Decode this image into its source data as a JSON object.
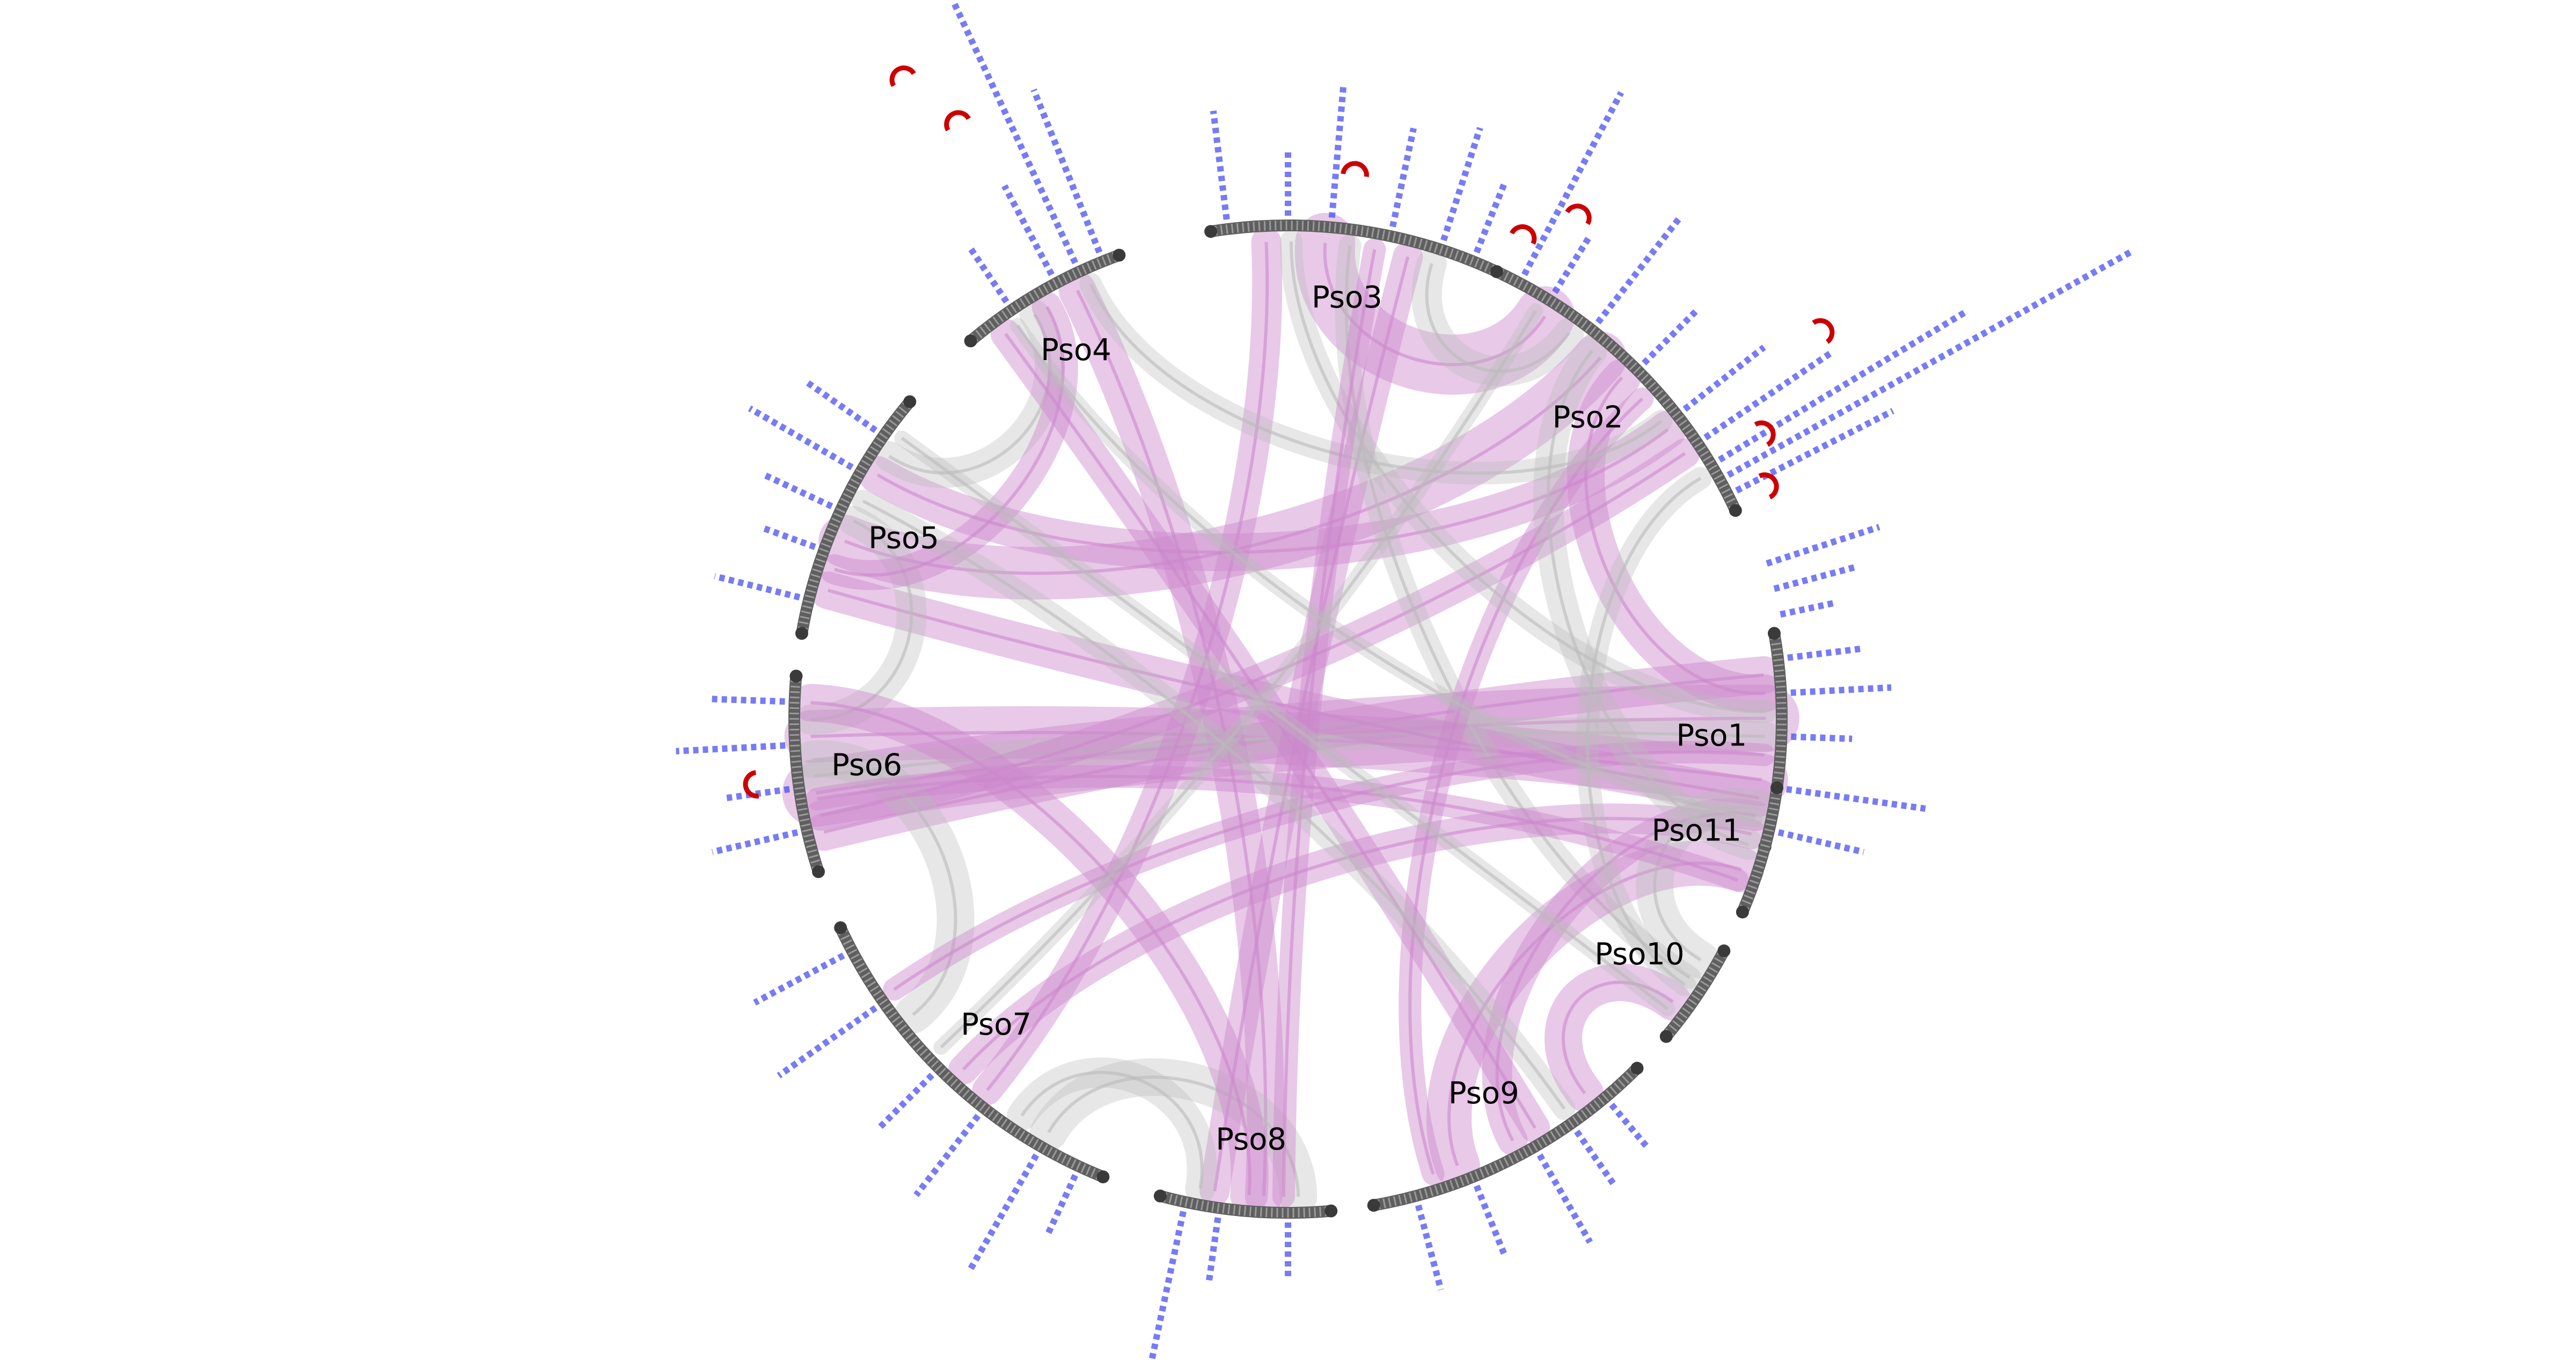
{
  "colors": {
    "background": "#ffffff",
    "chromosome_arc": "#5f5f5f",
    "chromosome_tick": "#9a9a9a",
    "highlight_link": "#cc88cc",
    "background_link": "#bbbbbb",
    "histogram_bar": "#4a4ff0",
    "marker": "#cc0000"
  },
  "chromosomes": [
    {
      "id": "Pso1",
      "label": "Pso1",
      "start_deg": 10,
      "end_deg": -15
    },
    {
      "id": "Pso2",
      "label": "Pso2",
      "start_deg": 65,
      "end_deg": 25
    },
    {
      "id": "Pso3",
      "label": "Pso3",
      "start_deg": 99,
      "end_deg": 65
    },
    {
      "id": "Pso4",
      "label": "Pso4",
      "start_deg": 130,
      "end_deg": 110
    },
    {
      "id": "Pso5",
      "label": "Pso5",
      "start_deg": 170,
      "end_deg": 140
    },
    {
      "id": "Pso6",
      "label": "Pso6",
      "start_deg": 198,
      "end_deg": 175
    },
    {
      "id": "Pso7",
      "label": "Pso7",
      "start_deg": 248,
      "end_deg": 205
    },
    {
      "id": "Pso8",
      "label": "Pso8",
      "start_deg": 275,
      "end_deg": 255
    },
    {
      "id": "Pso9",
      "label": "Pso9",
      "start_deg": 315,
      "end_deg": 280
    },
    {
      "id": "Pso10",
      "label": "Pso10",
      "start_deg": 332,
      "end_deg": 320
    },
    {
      "id": "Pso11",
      "label": "Pso11",
      "start_deg": 352,
      "end_deg": 337
    }
  ],
  "links": [
    {
      "from": "Pso6",
      "to": "Pso1",
      "w": 9,
      "hl": true
    },
    {
      "from": "Pso6",
      "to": "Pso1",
      "w": 7,
      "hl": true
    },
    {
      "from": "Pso6",
      "to": "Pso1",
      "w": 5,
      "hl": true
    },
    {
      "from": "Pso6",
      "to": "Pso1",
      "w": 4,
      "hl": false
    },
    {
      "from": "Pso5",
      "to": "Pso2",
      "w": 7,
      "hl": true
    },
    {
      "from": "Pso5",
      "to": "Pso2",
      "w": 5,
      "hl": true
    },
    {
      "from": "Pso5",
      "to": "Pso1",
      "w": 5,
      "hl": true
    },
    {
      "from": "Pso5",
      "to": "Pso6",
      "w": 4,
      "hl": false
    },
    {
      "from": "Pso5",
      "to": "Pso4",
      "w": 4,
      "hl": false
    },
    {
      "from": "Pso2",
      "to": "Pso3",
      "w": 8,
      "hl": true
    },
    {
      "from": "Pso2",
      "to": "Pso1",
      "w": 5,
      "hl": true
    },
    {
      "from": "Pso2",
      "to": "Pso6",
      "w": 4,
      "hl": true
    },
    {
      "from": "Pso4",
      "to": "Pso8",
      "w": 5,
      "hl": true
    },
    {
      "from": "Pso4",
      "to": "Pso9",
      "w": 4,
      "hl": true
    },
    {
      "from": "Pso4",
      "to": "Pso5",
      "w": 4,
      "hl": true
    },
    {
      "from": "Pso3",
      "to": "Pso8",
      "w": 4,
      "hl": true
    },
    {
      "from": "Pso3",
      "to": "Pso7",
      "w": 4,
      "hl": true
    },
    {
      "from": "Pso3",
      "to": "Pso10",
      "w": 3,
      "hl": false
    },
    {
      "from": "Pso3",
      "to": "Pso2",
      "w": 4,
      "hl": false
    },
    {
      "from": "Pso7",
      "to": "Pso6",
      "w": 5,
      "hl": false
    },
    {
      "from": "Pso7",
      "to": "Pso8",
      "w": 5,
      "hl": false
    },
    {
      "from": "Pso7",
      "to": "Pso11",
      "w": 4,
      "hl": true
    },
    {
      "from": "Pso7",
      "to": "Pso1",
      "w": 3,
      "hl": true
    },
    {
      "from": "Pso8",
      "to": "Pso6",
      "w": 5,
      "hl": true
    },
    {
      "from": "Pso8",
      "to": "Pso7",
      "w": 4,
      "hl": false
    },
    {
      "from": "Pso9",
      "to": "Pso11",
      "w": 6,
      "hl": true
    },
    {
      "from": "Pso9",
      "to": "Pso10",
      "w": 5,
      "hl": true
    },
    {
      "from": "Pso9",
      "to": "Pso1",
      "w": 4,
      "hl": true
    },
    {
      "from": "Pso9",
      "to": "Pso2",
      "w": 3,
      "hl": true
    },
    {
      "from": "Pso10",
      "to": "Pso11",
      "w": 5,
      "hl": false
    },
    {
      "from": "Pso10",
      "to": "Pso2",
      "w": 3,
      "hl": false
    },
    {
      "from": "Pso11",
      "to": "Pso2",
      "w": 4,
      "hl": false
    },
    {
      "from": "Pso11",
      "to": "Pso6",
      "w": 3,
      "hl": true
    },
    {
      "from": "Pso1",
      "to": "Pso3",
      "w": 3,
      "hl": false
    },
    {
      "from": "Pso4",
      "to": "Pso2",
      "w": 3,
      "hl": false
    },
    {
      "from": "Pso8",
      "to": "Pso3",
      "w": 3,
      "hl": true
    },
    {
      "from": "Pso9",
      "to": "Pso5",
      "w": 3,
      "hl": false
    },
    {
      "from": "Pso10",
      "to": "Pso5",
      "w": 2,
      "hl": false
    },
    {
      "from": "Pso11",
      "to": "Pso4",
      "w": 2,
      "hl": false
    },
    {
      "from": "Pso7",
      "to": "Pso2",
      "w": 2,
      "hl": false
    }
  ],
  "histogram_bars": [
    {
      "deg": 7,
      "h": 0.12
    },
    {
      "deg": 3,
      "h": 0.18
    },
    {
      "deg": -2,
      "h": 0.09
    },
    {
      "deg": -8,
      "h": 0.27
    },
    {
      "deg": -13,
      "h": 0.15
    },
    {
      "deg": 12,
      "h": 0.08
    },
    {
      "deg": 15,
      "h": 0.14
    },
    {
      "deg": 18,
      "h": 0.22
    },
    {
      "deg": 27,
      "h": 0.35
    },
    {
      "deg": 29,
      "h": 1.0
    },
    {
      "deg": 31,
      "h": 0.6
    },
    {
      "deg": 34,
      "h": 0.3
    },
    {
      "deg": 38,
      "h": 0.18
    },
    {
      "deg": 45,
      "h": 0.12
    },
    {
      "deg": 52,
      "h": 0.25
    },
    {
      "deg": 58,
      "h": 0.1
    },
    {
      "deg": 62,
      "h": 0.42
    },
    {
      "deg": 68,
      "h": 0.12
    },
    {
      "deg": 72,
      "h": 0.22
    },
    {
      "deg": 78,
      "h": 0.18
    },
    {
      "deg": 85,
      "h": 0.25
    },
    {
      "deg": 90,
      "h": 0.1
    },
    {
      "deg": 97,
      "h": 0.2
    },
    {
      "deg": 112,
      "h": 0.35
    },
    {
      "deg": 115,
      "h": 0.6
    },
    {
      "deg": 118,
      "h": 0.18
    },
    {
      "deg": 124,
      "h": 0.1
    },
    {
      "deg": 145,
      "h": 0.14
    },
    {
      "deg": 150,
      "h": 0.22
    },
    {
      "deg": 155,
      "h": 0.12
    },
    {
      "deg": 160,
      "h": 0.08
    },
    {
      "deg": 166,
      "h": 0.15
    },
    {
      "deg": 178,
      "h": 0.12
    },
    {
      "deg": 183,
      "h": 0.2
    },
    {
      "deg": 188,
      "h": 0.1
    },
    {
      "deg": 193,
      "h": 0.15
    },
    {
      "deg": 208,
      "h": 0.18
    },
    {
      "deg": 215,
      "h": 0.22
    },
    {
      "deg": 225,
      "h": 0.12
    },
    {
      "deg": 232,
      "h": 0.18
    },
    {
      "deg": 240,
      "h": 0.25
    },
    {
      "deg": 245,
      "h": 0.1
    },
    {
      "deg": 258,
      "h": 0.45
    },
    {
      "deg": 262,
      "h": 0.1
    },
    {
      "deg": 270,
      "h": 0.08
    },
    {
      "deg": 285,
      "h": 0.15
    },
    {
      "deg": 292,
      "h": 0.12
    },
    {
      "deg": 300,
      "h": 0.18
    },
    {
      "deg": 305,
      "h": 0.1
    },
    {
      "deg": 310,
      "h": 0.08
    }
  ],
  "markers": [
    {
      "deg": 121,
      "h": 0.5
    },
    {
      "deg": 119,
      "h": 0.35
    },
    {
      "deg": 83,
      "h": 0.05
    },
    {
      "deg": 60,
      "h": 0.12
    },
    {
      "deg": 64,
      "h": 0.02
    },
    {
      "deg": 36,
      "h": 0.3
    },
    {
      "deg": 31,
      "h": 0.06
    },
    {
      "deg": 26,
      "h": 0.01
    },
    {
      "deg": 187,
      "h": 0.02
    }
  ]
}
